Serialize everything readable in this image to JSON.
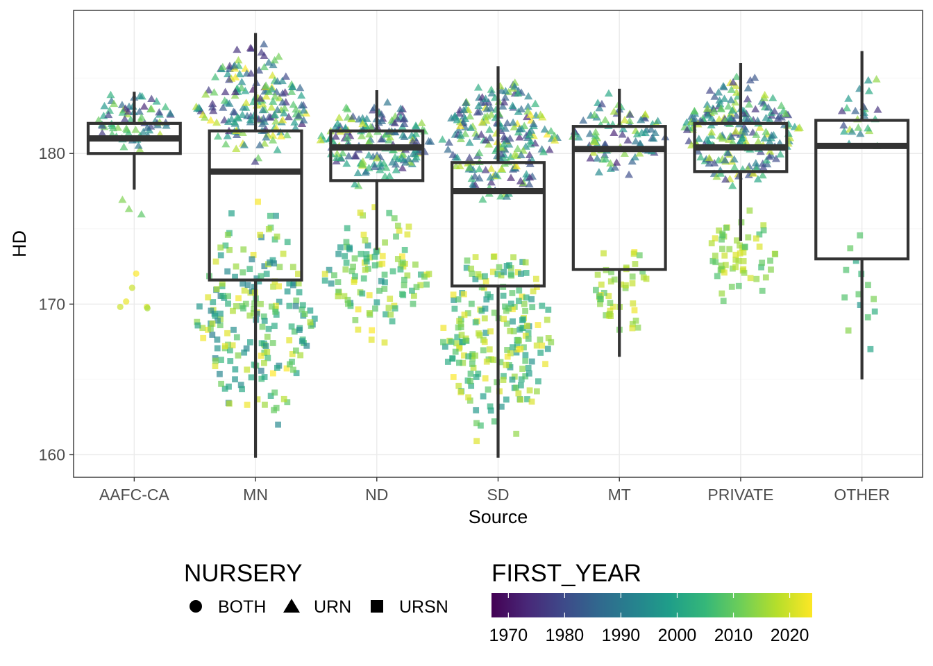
{
  "chart_data": {
    "type": "box",
    "xlabel": "Source",
    "ylabel": "HD",
    "ylim": [
      158.5,
      189.5
    ],
    "y_ticks": [
      160,
      170,
      180
    ],
    "grid": true,
    "categories": [
      "AAFC-CA",
      "MN",
      "ND",
      "SD",
      "MT",
      "PRIVATE",
      "OTHER"
    ],
    "boxes": [
      {
        "category": "AAFC-CA",
        "min": 177.6,
        "q1": 180.0,
        "median": 181.0,
        "q3": 182.0,
        "max": 184.1
      },
      {
        "category": "MN",
        "min": 159.8,
        "q1": 171.6,
        "median": 178.8,
        "q3": 181.5,
        "max": 188.0
      },
      {
        "category": "ND",
        "min": 173.6,
        "q1": 178.2,
        "median": 180.4,
        "q3": 181.5,
        "max": 184.2
      },
      {
        "category": "SD",
        "min": 159.8,
        "q1": 171.2,
        "median": 177.5,
        "q3": 179.4,
        "max": 185.8
      },
      {
        "category": "MT",
        "min": 166.5,
        "q1": 172.3,
        "median": 180.3,
        "q3": 181.8,
        "max": 184.3
      },
      {
        "category": "PRIVATE",
        "min": 174.2,
        "q1": 178.8,
        "median": 180.4,
        "q3": 182.0,
        "max": 186.0
      },
      {
        "category": "OTHER",
        "min": 165.0,
        "q1": 173.0,
        "median": 180.5,
        "q3": 182.2,
        "max": 186.8
      }
    ],
    "points_by_category": [
      {
        "category": "AAFC-CA",
        "groups": [
          {
            "nursery": "URN",
            "count": 70,
            "ymin": 179.4,
            "ymax": 185.0,
            "first_year_min": 1972,
            "first_year_max": 2018
          },
          {
            "nursery": "URN",
            "count": 3,
            "ymin": 175.0,
            "ymax": 178.0,
            "first_year_min": 2008,
            "first_year_max": 2014
          },
          {
            "nursery": "BOTH",
            "count": 6,
            "ymin": 168.5,
            "ymax": 172.8,
            "first_year_min": 2016,
            "first_year_max": 2024
          }
        ]
      },
      {
        "category": "MN",
        "groups": [
          {
            "nursery": "URN",
            "count": 180,
            "ymin": 178.5,
            "ymax": 188.0,
            "first_year_min": 1970,
            "first_year_max": 2024
          },
          {
            "nursery": "URSN",
            "count": 200,
            "ymin": 159.8,
            "ymax": 178.3,
            "first_year_min": 1990,
            "first_year_max": 2024
          }
        ]
      },
      {
        "category": "ND",
        "groups": [
          {
            "nursery": "URN",
            "count": 170,
            "ymin": 177.5,
            "ymax": 184.3,
            "first_year_min": 1972,
            "first_year_max": 2022
          },
          {
            "nursery": "URSN",
            "count": 110,
            "ymin": 166.8,
            "ymax": 177.5,
            "first_year_min": 1995,
            "first_year_max": 2024
          }
        ]
      },
      {
        "category": "SD",
        "groups": [
          {
            "nursery": "URN",
            "count": 220,
            "ymin": 176.0,
            "ymax": 185.8,
            "first_year_min": 1972,
            "first_year_max": 2024
          },
          {
            "nursery": "URSN",
            "count": 210,
            "ymin": 159.8,
            "ymax": 176.0,
            "first_year_min": 1995,
            "first_year_max": 2024
          }
        ]
      },
      {
        "category": "MT",
        "groups": [
          {
            "nursery": "URN",
            "count": 90,
            "ymin": 178.0,
            "ymax": 184.5,
            "first_year_min": 1972,
            "first_year_max": 2020
          },
          {
            "nursery": "URSN",
            "count": 45,
            "ymin": 166.5,
            "ymax": 175.2,
            "first_year_min": 2008,
            "first_year_max": 2024
          }
        ]
      },
      {
        "category": "PRIVATE",
        "groups": [
          {
            "nursery": "URN",
            "count": 220,
            "ymin": 177.0,
            "ymax": 186.0,
            "first_year_min": 1975,
            "first_year_max": 2022
          },
          {
            "nursery": "URSN",
            "count": 60,
            "ymin": 169.4,
            "ymax": 177.0,
            "first_year_min": 2005,
            "first_year_max": 2022
          }
        ]
      },
      {
        "category": "OTHER",
        "groups": [
          {
            "nursery": "URN",
            "count": 25,
            "ymin": 177.8,
            "ymax": 186.8,
            "first_year_min": 1975,
            "first_year_max": 2018
          },
          {
            "nursery": "URSN",
            "count": 14,
            "ymin": 165.0,
            "ymax": 176.5,
            "first_year_min": 1995,
            "first_year_max": 2015
          }
        ]
      }
    ],
    "shape_legend": {
      "title": "NURSERY",
      "items": [
        {
          "label": "BOTH",
          "shape": "circle"
        },
        {
          "label": "URN",
          "shape": "triangle"
        },
        {
          "label": "URSN",
          "shape": "square"
        }
      ]
    },
    "color_legend": {
      "title": "FIRST_YEAR",
      "range": [
        1967,
        2024
      ],
      "ticks": [
        1970,
        1980,
        1990,
        2000,
        2010,
        2020
      ],
      "palette": [
        "#440154",
        "#482878",
        "#3e4989",
        "#31688e",
        "#26828e",
        "#1f9e89",
        "#35b779",
        "#6ece58",
        "#b5de2b",
        "#fde725"
      ]
    },
    "legend_position": "bottom"
  }
}
